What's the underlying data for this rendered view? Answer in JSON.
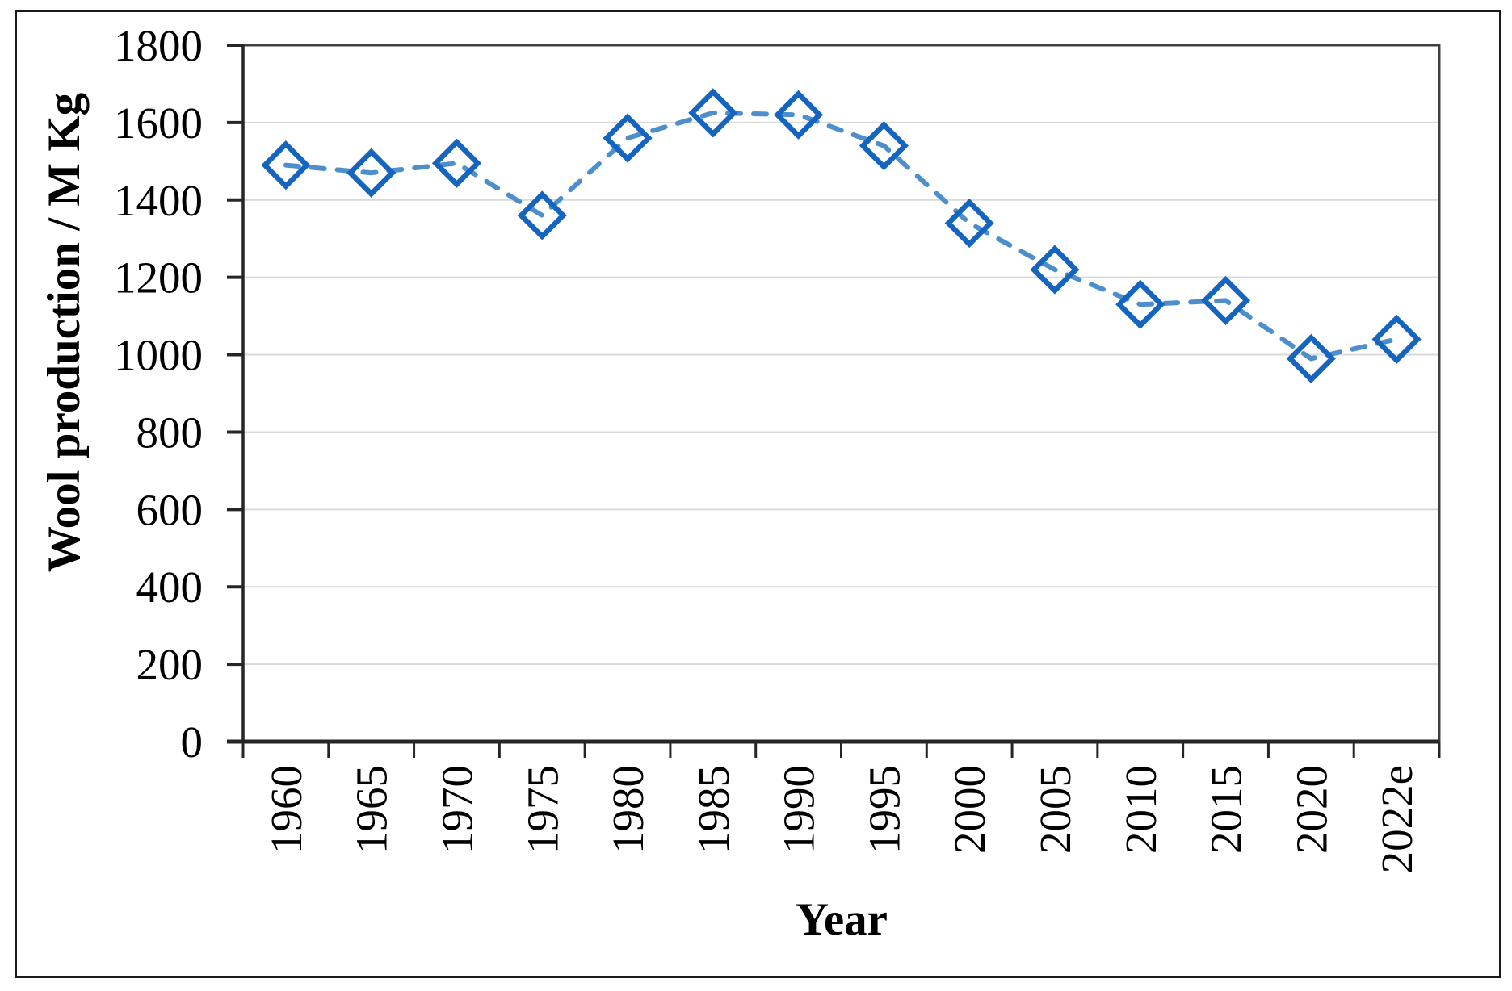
{
  "chart_data": {
    "type": "line",
    "title": "",
    "xlabel": "Year",
    "ylabel": "Wool production / M Kg",
    "categories": [
      "1960",
      "1965",
      "1970",
      "1975",
      "1980",
      "1985",
      "1990",
      "1995",
      "2000",
      "2005",
      "2010",
      "2015",
      "2020",
      "2022e"
    ],
    "series": [
      {
        "name": "Wool production (M Kg)",
        "values": [
          1490,
          1470,
          1495,
          1360,
          1560,
          1625,
          1620,
          1540,
          1340,
          1220,
          1130,
          1140,
          990,
          1040
        ]
      }
    ],
    "ylim": [
      0,
      1800
    ],
    "ytick_step": 200,
    "grid": "horizontal-only",
    "legend_position": "none",
    "line_style": "dashed",
    "marker": "open-diamond",
    "x_tick_label_rotation_deg": 90,
    "colors": {
      "line": "#4D8FCC",
      "marker_stroke": "#1565C0",
      "marker_fill": "none",
      "gridline": "#D9D9D9",
      "plot_border": "#404040",
      "axis": "#262626",
      "text": "#000000",
      "figure_border": "#1A1A1A",
      "background": "#FFFFFF"
    }
  }
}
